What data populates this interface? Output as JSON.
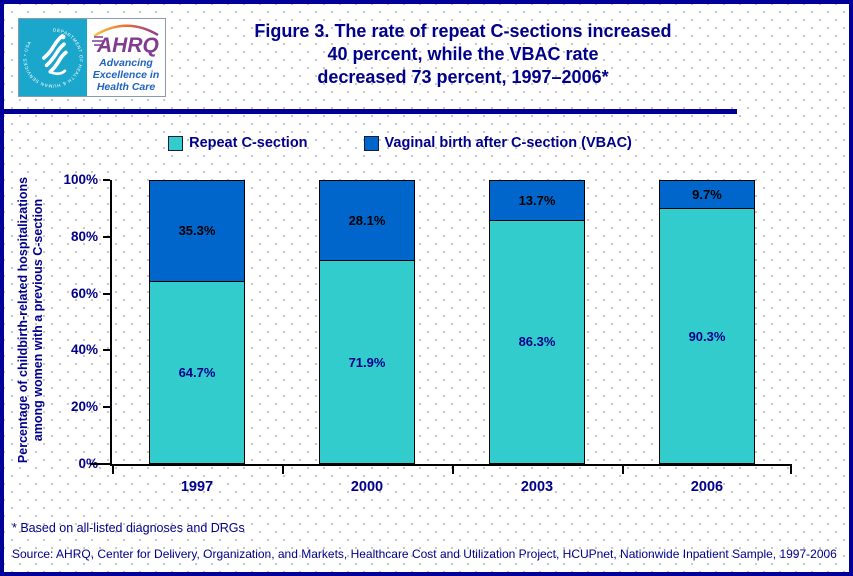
{
  "header": {
    "logo": {
      "hhs_circle_text": "DEPARTMENT OF HEALTH & HUMAN SERVICES • USA",
      "ahrq_text": "AHRQ",
      "tagline_lines": [
        "Advancing",
        "Excellence in",
        "Health Care"
      ]
    },
    "title_lines": [
      "Figure 3. The rate of repeat C-sections increased",
      "40 percent, while the VBAC rate",
      "decreased 73 percent, 1997–2006*"
    ]
  },
  "chart_data": {
    "type": "bar",
    "stacked": true,
    "title": "Figure 3. The rate of repeat C-sections increased 40 percent, while the VBAC rate decreased 73 percent, 1997–2006*",
    "categories": [
      "1997",
      "2000",
      "2003",
      "2006"
    ],
    "series": [
      {
        "name": "Repeat C-section",
        "color": "#33CCCC",
        "label_color": "#00008B",
        "values": [
          64.7,
          71.9,
          86.3,
          90.3
        ]
      },
      {
        "name": "Vaginal birth after C-section (VBAC)",
        "color": "#0066CC",
        "label_color": "#000000",
        "values": [
          35.3,
          28.1,
          13.7,
          9.7
        ]
      }
    ],
    "ylabel_lines": [
      "Percentage of childbirth-related hospitalizations",
      "among women with a previous C-section"
    ],
    "ylabel": "Percentage of childbirth-related hospitalizations among women with a previous C-section",
    "xlabel": "",
    "yticks": [
      0,
      20,
      40,
      60,
      80,
      100
    ],
    "ytick_suffix": "%",
    "value_suffix": "%",
    "ylim": [
      0,
      100
    ],
    "grid": false,
    "legend_position": "top"
  },
  "footnote": "* Based on all-listed diagnoses and DRGs",
  "source": "Source: AHRQ, Center for Delivery, Organization, and Markets, Healthcare Cost and Utilization Project, HCUPnet, Nationwide Inpatient Sample, 1997-2006",
  "colors": {
    "page_border": "#000099",
    "navy_text": "#00008B",
    "bar_teal": "#33CCCC",
    "bar_blue": "#0066CC",
    "logo_cyan": "#1BA6CB",
    "ahrq_purple": "#823B8F",
    "tagline_blue": "#2163C0"
  }
}
